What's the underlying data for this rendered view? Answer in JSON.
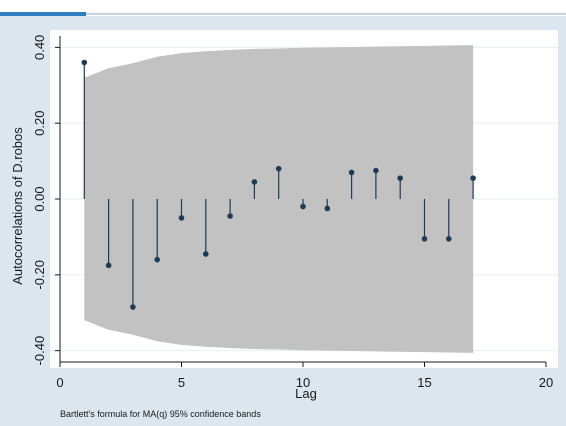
{
  "colors": {
    "background": "#dbe6ee",
    "plot_region": "#ffffff",
    "band": "#c2c2c2",
    "stem": "#1f3a55",
    "grid": "#e7eef3",
    "accent": "#2f7fc1"
  },
  "chart_data": {
    "type": "stem",
    "xlabel": "Lag",
    "ylabel": "Autocorrelations of D.robos",
    "note": "Bartlett's formula for MA(q) 95% confidence bands",
    "xlim": [
      0,
      20
    ],
    "ylim": [
      -0.43,
      0.43
    ],
    "x_ticks": [
      0,
      5,
      10,
      15,
      20
    ],
    "x_tick_labels": [
      "0",
      "5",
      "10",
      "15",
      "20"
    ],
    "y_ticks": [
      -0.4,
      -0.2,
      0.0,
      0.2,
      0.4
    ],
    "y_tick_labels": [
      "-0.40",
      "-0.20",
      "0.00",
      "0.20",
      "0.40"
    ],
    "grid": true,
    "series": [
      {
        "lags": [
          1,
          2,
          3,
          4,
          5,
          6,
          7,
          8,
          9,
          10,
          11,
          12,
          13,
          14,
          15,
          16,
          17
        ],
        "values": [
          0.36,
          -0.175,
          -0.285,
          -0.16,
          -0.05,
          -0.145,
          -0.045,
          0.045,
          0.08,
          -0.02,
          -0.025,
          0.07,
          0.075,
          0.055,
          -0.105,
          -0.105,
          0.055
        ]
      }
    ],
    "confidence_band": {
      "lags": [
        1,
        2,
        3,
        4,
        5,
        6,
        7,
        8,
        9,
        10,
        11,
        12,
        13,
        14,
        15,
        16,
        17
      ],
      "upper": [
        0.32,
        0.345,
        0.358,
        0.375,
        0.385,
        0.39,
        0.393,
        0.396,
        0.397,
        0.399,
        0.4,
        0.401,
        0.402,
        0.403,
        0.404,
        0.405,
        0.406
      ],
      "lower": [
        -0.32,
        -0.345,
        -0.358,
        -0.375,
        -0.385,
        -0.39,
        -0.393,
        -0.396,
        -0.397,
        -0.399,
        -0.4,
        -0.401,
        -0.402,
        -0.403,
        -0.404,
        -0.405,
        -0.406
      ]
    }
  }
}
